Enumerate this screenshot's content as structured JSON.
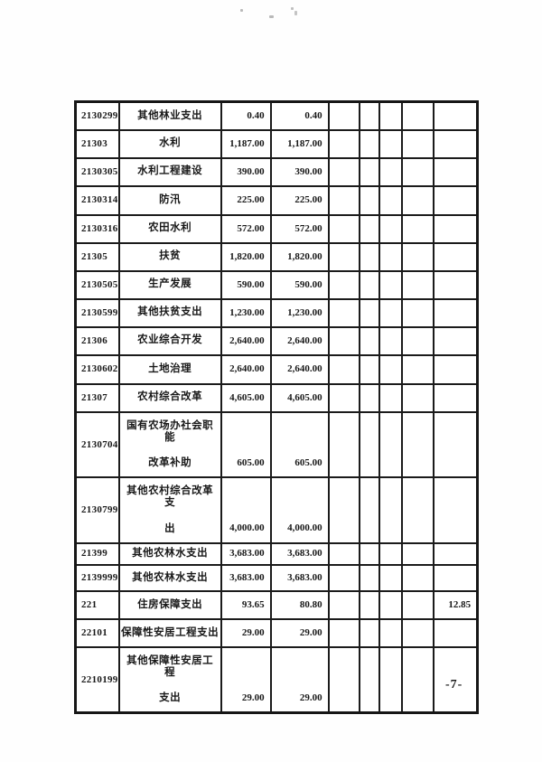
{
  "page": {
    "number": "-7-"
  },
  "table": {
    "rows": [
      {
        "code": "2130299",
        "name_lines": [
          "其他林业支出"
        ],
        "amount1": "0.40",
        "amount2": "0.40",
        "last": ""
      },
      {
        "code": "21303",
        "name_lines": [
          "水利"
        ],
        "amount1": "1,187.00",
        "amount2": "1,187.00",
        "last": ""
      },
      {
        "code": "2130305",
        "name_lines": [
          "水利工程建设"
        ],
        "amount1": "390.00",
        "amount2": "390.00",
        "last": ""
      },
      {
        "code": "2130314",
        "name_lines": [
          "防汛"
        ],
        "amount1": "225.00",
        "amount2": "225.00",
        "last": ""
      },
      {
        "code": "2130316",
        "name_lines": [
          "农田水利"
        ],
        "amount1": "572.00",
        "amount2": "572.00",
        "last": ""
      },
      {
        "code": "21305",
        "name_lines": [
          "扶贫"
        ],
        "amount1": "1,820.00",
        "amount2": "1,820.00",
        "last": ""
      },
      {
        "code": "2130505",
        "name_lines": [
          "生产发展"
        ],
        "amount1": "590.00",
        "amount2": "590.00",
        "last": ""
      },
      {
        "code": "2130599",
        "name_lines": [
          "其他扶贫支出"
        ],
        "amount1": "1,230.00",
        "amount2": "1,230.00",
        "last": ""
      },
      {
        "code": "21306",
        "name_lines": [
          "农业综合开发"
        ],
        "amount1": "2,640.00",
        "amount2": "2,640.00",
        "last": ""
      },
      {
        "code": "2130602",
        "name_lines": [
          "土地治理"
        ],
        "amount1": "2,640.00",
        "amount2": "2,640.00",
        "last": ""
      },
      {
        "code": "21307",
        "name_lines": [
          "农村综合改革"
        ],
        "amount1": "4,605.00",
        "amount2": "4,605.00",
        "last": ""
      },
      {
        "code": "2130704",
        "name_lines": [
          "国有农场办社会职能",
          "改革补助"
        ],
        "amount1": "605.00",
        "amount2": "605.00",
        "last": ""
      },
      {
        "code": "2130799",
        "name_lines": [
          "其他农村综合改革支",
          "出"
        ],
        "amount1": "4,000.00",
        "amount2": "4,000.00",
        "last": ""
      },
      {
        "code": "21399",
        "name_lines": [
          "其他农林水支出"
        ],
        "amount1": "3,683.00",
        "amount2": "3,683.00",
        "last": ""
      },
      {
        "code": "2139999",
        "name_lines": [
          "其他农林水支出"
        ],
        "amount1": "3,683.00",
        "amount2": "3,683.00",
        "last": ""
      },
      {
        "code": "221",
        "name_lines": [
          "住房保障支出"
        ],
        "amount1": "93.65",
        "amount2": "80.80",
        "last": "12.85"
      },
      {
        "code": "22101",
        "name_lines": [
          "保障性安居工程支出"
        ],
        "amount1": "29.00",
        "amount2": "29.00",
        "last": ""
      },
      {
        "code": "2210199",
        "name_lines": [
          "其他保障性安居工程",
          "支出"
        ],
        "amount1": "29.00",
        "amount2": "29.00",
        "last": ""
      }
    ]
  }
}
